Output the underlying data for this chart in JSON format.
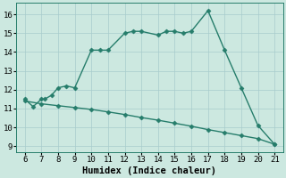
{
  "title": "",
  "xlabel": "Humidex (Indice chaleur)",
  "ylabel": "",
  "xlim": [
    5.5,
    21.5
  ],
  "ylim": [
    8.7,
    16.6
  ],
  "xticks": [
    6,
    7,
    8,
    9,
    10,
    11,
    12,
    13,
    14,
    15,
    16,
    17,
    18,
    19,
    20,
    21
  ],
  "yticks": [
    9,
    10,
    11,
    12,
    13,
    14,
    15,
    16
  ],
  "line1_x": [
    6,
    6.5,
    7,
    7.2,
    7.6,
    8,
    8.5,
    9,
    10,
    10.5,
    11,
    12,
    12.5,
    13,
    14,
    14.5,
    15,
    15.5,
    16,
    17,
    18,
    19,
    20,
    21
  ],
  "line1_y": [
    11.5,
    11.1,
    11.5,
    11.5,
    11.7,
    12.1,
    12.2,
    12.1,
    14.1,
    14.1,
    14.1,
    15.0,
    15.1,
    15.1,
    14.9,
    15.1,
    15.1,
    15.0,
    15.1,
    16.2,
    14.1,
    12.1,
    10.1,
    9.1
  ],
  "line2_x": [
    6,
    7,
    8,
    9,
    10,
    11,
    12,
    13,
    14,
    15,
    16,
    17,
    18,
    19,
    20,
    21
  ],
  "line2_y": [
    11.4,
    11.25,
    11.15,
    11.05,
    10.95,
    10.82,
    10.68,
    10.52,
    10.38,
    10.22,
    10.06,
    9.88,
    9.72,
    9.56,
    9.4,
    9.1
  ],
  "line_color": "#267d6b",
  "bg_color": "#cce8e0",
  "grid_color": "#a8cccc",
  "marker": "D",
  "marker_size": 2.5,
  "line_width": 1.0,
  "font_family": "monospace",
  "tick_fontsize": 6.5,
  "xlabel_fontsize": 7.5
}
